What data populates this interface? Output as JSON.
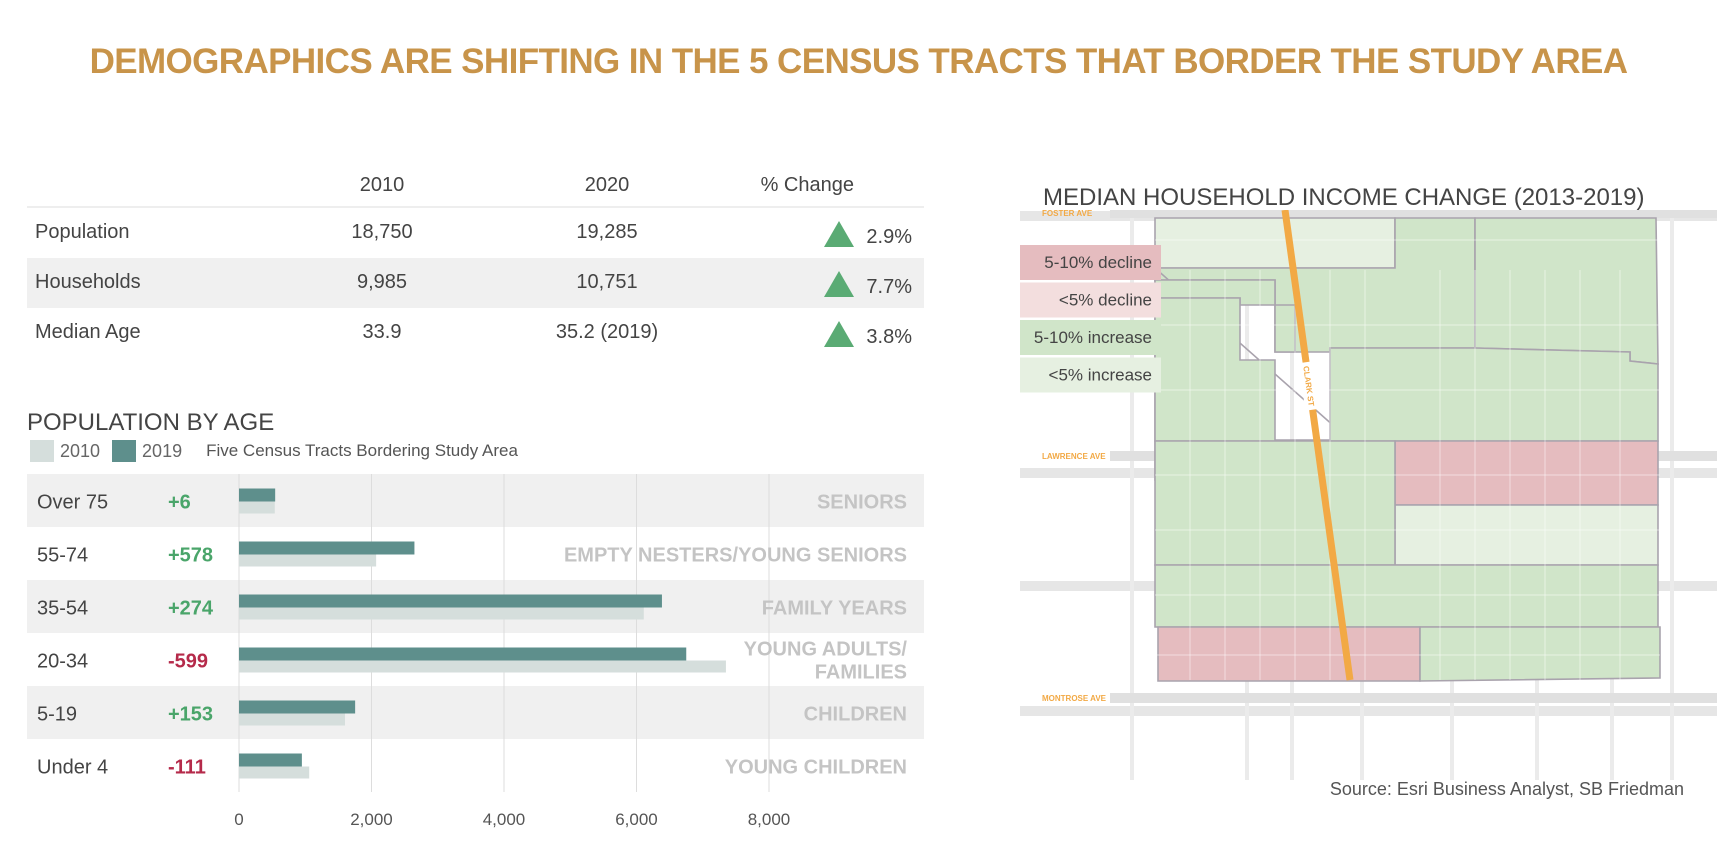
{
  "title": "DEMOGRAPHICS ARE SHIFTING IN THE 5 CENSUS TRACTS THAT BORDER THE STUDY AREA",
  "stats_table": {
    "headers": [
      "",
      "2010",
      "2020",
      "% Change"
    ],
    "rows": [
      {
        "label": "Population",
        "v2010": "18,750",
        "v2020": "19,285",
        "change": "2.9%",
        "direction": "up"
      },
      {
        "label": "Households",
        "v2010": "9,985",
        "v2020": "10,751",
        "change": "7.7%",
        "direction": "up"
      },
      {
        "label": "Median Age",
        "v2010": "33.9",
        "v2020": "35.2 (2019)",
        "change": "3.8%",
        "direction": "up"
      }
    ],
    "up_color": "#5aab74"
  },
  "chart_data": [
    {
      "type": "bar",
      "orientation": "horizontal",
      "title": "POPULATION BY AGE",
      "subtitle": "Five Census Tracts Bordering Study Area",
      "categories": [
        "Over 75",
        "55-74",
        "35-54",
        "20-34",
        "5-19",
        "Under 4"
      ],
      "category_groups": [
        "SENIORS",
        "EMPTY NESTERS/YOUNG SENIORS",
        "FAMILY YEARS",
        "YOUNG ADULTS/ FAMILIES",
        "CHILDREN",
        "YOUNG CHILDREN"
      ],
      "changes": [
        "+6",
        "+578",
        "+274",
        "-599",
        "+153",
        "-111"
      ],
      "series": [
        {
          "name": "2010",
          "color": "#d5dedc",
          "values": [
            540,
            2070,
            6110,
            7350,
            1600,
            1060
          ]
        },
        {
          "name": "2019",
          "color": "#5e8f8c",
          "values": [
            546,
            2648,
            6384,
            6751,
            1753,
            949
          ]
        }
      ],
      "xlim": [
        0,
        10000
      ],
      "xticks": [
        "0",
        "2,000",
        "4,000",
        "6,000",
        "8,000"
      ],
      "xtick_values": [
        0,
        2000,
        4000,
        6000,
        8000
      ],
      "grid": true,
      "legend": "top-left",
      "positive_color": "#4aa56a",
      "negative_color": "#b52a4a"
    },
    {
      "type": "heatmap",
      "title": "MEDIAN HOUSEHOLD INCOME CHANGE (2013-2019)",
      "legend_entries": [
        {
          "label": "5-10% decline",
          "color": "#e5bcbf"
        },
        {
          "label": "<5% decline",
          "color": "#f3dede"
        },
        {
          "label": "5-10% increase",
          "color": "#d0e5c9"
        },
        {
          "label": "<5% increase",
          "color": "#e6f0e1"
        }
      ],
      "street_labels": [
        "FOSTER AVE",
        "LAWRENCE AVE",
        "MONTROSE AVE",
        "CLARK ST"
      ],
      "regions": [
        {
          "name": "north-west tract",
          "category": "<5% increase"
        },
        {
          "name": "north-center tract",
          "category": "5-10% increase"
        },
        {
          "name": "north-east tract",
          "category": "5-10% increase"
        },
        {
          "name": "middle-west tract",
          "category": "5-10% increase"
        },
        {
          "name": "middle-east upper",
          "category": "5-10% decline"
        },
        {
          "name": "middle-east lower",
          "category": "<5% increase"
        },
        {
          "name": "south-band",
          "category": "5-10% increase"
        },
        {
          "name": "south-west block",
          "category": "5-10% decline"
        },
        {
          "name": "south-east block",
          "category": "5-10% increase"
        }
      ],
      "legend": "top-left"
    }
  ],
  "source": "Source: Esri Business Analyst, SB Friedman",
  "colors": {
    "title": "#c8944a",
    "street": "#f2a945"
  }
}
